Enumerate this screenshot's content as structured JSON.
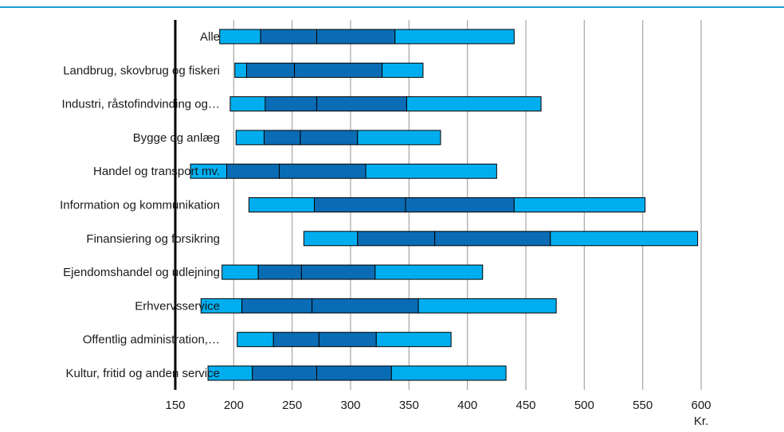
{
  "colors": {
    "light_segment": "#00aeef",
    "dark_segment": "#0a6cb4",
    "grid": "#a6a6a6",
    "axis": "#000000",
    "top_rule": "#1e9bd7"
  },
  "chart_data": {
    "type": "bar",
    "orientation": "horizontal",
    "subtype": "stacked-range (5 boundaries per category)",
    "x_unit": "Kr.",
    "xlim": [
      150,
      600
    ],
    "x_ticks": [
      150,
      200,
      250,
      300,
      350,
      400,
      450,
      500,
      550,
      600
    ],
    "grid": "vertical",
    "categories": [
      "Alle",
      "Landbrug, skovbrug og fiskeri",
      "Industri, råstofindvinding og…",
      "Bygge og anlæg",
      "Handel og transport mv.",
      "Information og kommunikation",
      "Finansiering og forsikring",
      "Ejendomshandel og udlejning",
      "Erhvervsservice",
      "Offentlig administration,…",
      "Kultur, fritid og anden service"
    ],
    "boundaries": [
      [
        188,
        223,
        271,
        338,
        440
      ],
      [
        201,
        211,
        252,
        327,
        362
      ],
      [
        197,
        227,
        271,
        348,
        463
      ],
      [
        202,
        226,
        257,
        306,
        377
      ],
      [
        163,
        194,
        239,
        313,
        425
      ],
      [
        213,
        269,
        347,
        440,
        552
      ],
      [
        260,
        306,
        372,
        471,
        597
      ],
      [
        190,
        221,
        258,
        321,
        413
      ],
      [
        172,
        207,
        267,
        358,
        476
      ],
      [
        203,
        234,
        273,
        322,
        386
      ],
      [
        178,
        216,
        271,
        335,
        433
      ]
    ],
    "segment_colors": [
      "light",
      "dark",
      "dark",
      "light"
    ]
  }
}
